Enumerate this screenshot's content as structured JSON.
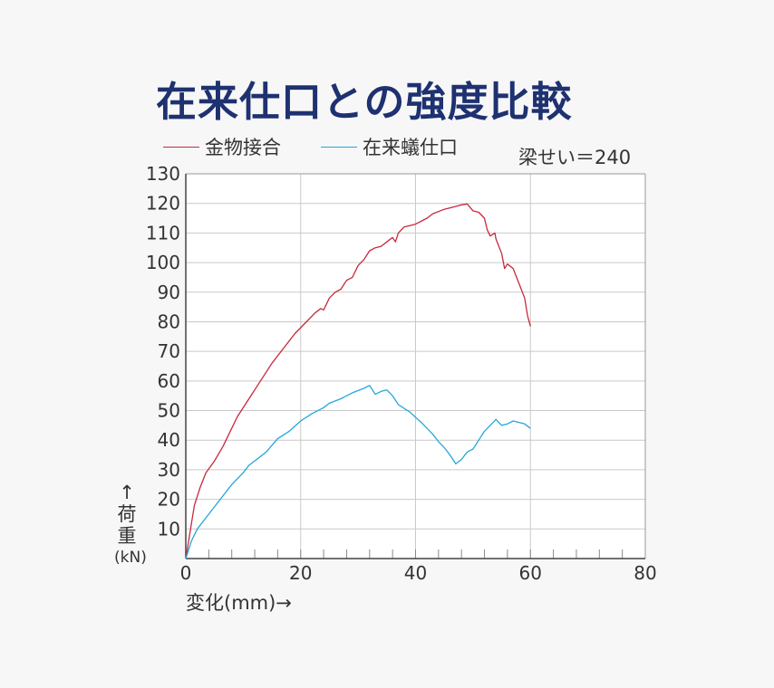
{
  "title": "在来仕口との強度比較",
  "note": "梁せい＝240",
  "y_arrow": "↑",
  "y_text_1": "荷",
  "y_text_2": "重",
  "y_unit": "(kN)",
  "chart_data": {
    "type": "line",
    "title": "在来仕口との強度比較",
    "xlabel": "変化(mm)→",
    "ylabel": "荷重(kN)",
    "xlim": [
      0,
      80
    ],
    "ylim": [
      0,
      130
    ],
    "xticks": [
      0,
      20,
      40,
      60,
      80
    ],
    "yticks": [
      10,
      20,
      30,
      40,
      50,
      60,
      70,
      80,
      90,
      100,
      110,
      120,
      130
    ],
    "grid": true,
    "legend_position": "top-left",
    "series": [
      {
        "name": "金物接合",
        "color": "#c8283c",
        "points": [
          [
            0,
            0
          ],
          [
            0.5,
            6
          ],
          [
            1,
            12
          ],
          [
            1.5,
            18
          ],
          [
            2.5,
            24
          ],
          [
            3.5,
            29
          ],
          [
            5,
            33
          ],
          [
            6.5,
            38
          ],
          [
            7.5,
            42
          ],
          [
            9,
            48
          ],
          [
            11,
            54
          ],
          [
            13,
            60
          ],
          [
            15,
            66
          ],
          [
            17,
            71
          ],
          [
            19,
            76
          ],
          [
            21,
            80
          ],
          [
            22.5,
            83
          ],
          [
            23.5,
            84.5
          ],
          [
            24,
            84
          ],
          [
            25,
            88
          ],
          [
            26,
            90
          ],
          [
            27,
            91
          ],
          [
            28,
            94
          ],
          [
            29,
            95
          ],
          [
            30,
            99
          ],
          [
            31,
            101
          ],
          [
            32,
            104
          ],
          [
            33,
            105
          ],
          [
            34,
            105.5
          ],
          [
            35,
            107
          ],
          [
            36,
            108.5
          ],
          [
            36.5,
            107
          ],
          [
            37,
            110
          ],
          [
            38,
            112
          ],
          [
            39,
            112.5
          ],
          [
            40,
            113
          ],
          [
            42,
            115
          ],
          [
            43,
            116.5
          ],
          [
            45,
            118
          ],
          [
            46,
            118.5
          ],
          [
            47,
            119
          ],
          [
            48,
            119.5
          ],
          [
            49,
            119.8
          ],
          [
            50,
            117.5
          ],
          [
            51,
            117
          ],
          [
            52,
            115
          ],
          [
            52.5,
            111
          ],
          [
            53,
            109
          ],
          [
            53.8,
            110
          ],
          [
            54,
            108
          ],
          [
            55,
            103
          ],
          [
            55.5,
            98
          ],
          [
            56,
            99.5
          ],
          [
            57,
            98
          ],
          [
            58,
            93
          ],
          [
            59,
            88
          ],
          [
            59.5,
            82
          ],
          [
            60,
            78.5
          ]
        ]
      },
      {
        "name": "在来蟻仕口",
        "color": "#22a8d8",
        "points": [
          [
            0,
            0
          ],
          [
            0.5,
            3
          ],
          [
            1,
            6
          ],
          [
            2,
            10
          ],
          [
            4,
            15
          ],
          [
            6,
            20
          ],
          [
            8,
            25
          ],
          [
            10,
            29
          ],
          [
            11,
            31.5
          ],
          [
            12,
            33
          ],
          [
            14,
            36
          ],
          [
            16,
            40.5
          ],
          [
            18,
            43
          ],
          [
            20,
            46.5
          ],
          [
            22,
            49
          ],
          [
            24,
            51
          ],
          [
            25,
            52.5
          ],
          [
            27,
            54
          ],
          [
            29,
            56
          ],
          [
            31,
            57.5
          ],
          [
            32,
            58.5
          ],
          [
            33,
            55.5
          ],
          [
            34,
            56.5
          ],
          [
            35,
            57
          ],
          [
            36,
            55
          ],
          [
            37,
            52
          ],
          [
            39,
            49.5
          ],
          [
            41,
            46
          ],
          [
            43,
            42
          ],
          [
            44,
            39.5
          ],
          [
            45,
            37.5
          ],
          [
            46,
            35
          ],
          [
            47,
            32
          ],
          [
            48,
            33.5
          ],
          [
            49,
            36
          ],
          [
            50,
            37
          ],
          [
            51,
            40
          ],
          [
            52,
            43
          ],
          [
            53,
            45
          ],
          [
            54,
            47
          ],
          [
            55,
            45
          ],
          [
            56,
            45.5
          ],
          [
            57,
            46.5
          ],
          [
            58,
            46
          ],
          [
            59,
            45.5
          ],
          [
            60,
            44
          ]
        ]
      }
    ]
  }
}
